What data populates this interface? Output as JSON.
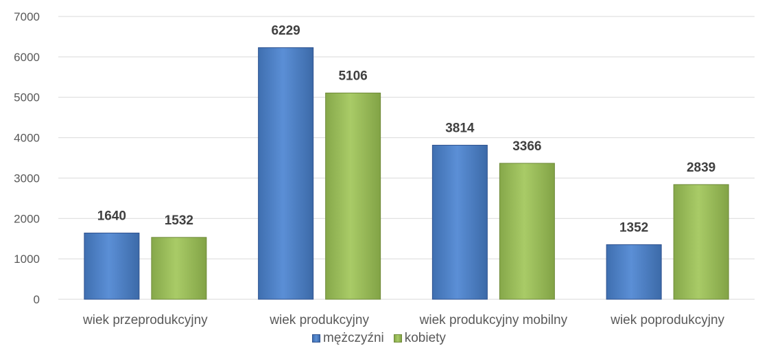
{
  "chart_data": {
    "type": "bar",
    "categories": [
      "wiek przeprodukcyjny",
      "wiek produkcyjny",
      "wiek produkcyjny mobilny",
      "wiek poprodukcyjny"
    ],
    "series": [
      {
        "name": "mężczyźni",
        "values": [
          1640,
          6229,
          3814,
          1352
        ],
        "color": "#4e81c4"
      },
      {
        "name": "kobiety",
        "values": [
          1532,
          5106,
          3366,
          2839
        ],
        "color": "#9bbb59"
      }
    ],
    "ylim": [
      0,
      7000
    ],
    "yticks": [
      0,
      1000,
      2000,
      3000,
      4000,
      5000,
      6000,
      7000
    ],
    "grid": true,
    "legend": "bottom"
  }
}
